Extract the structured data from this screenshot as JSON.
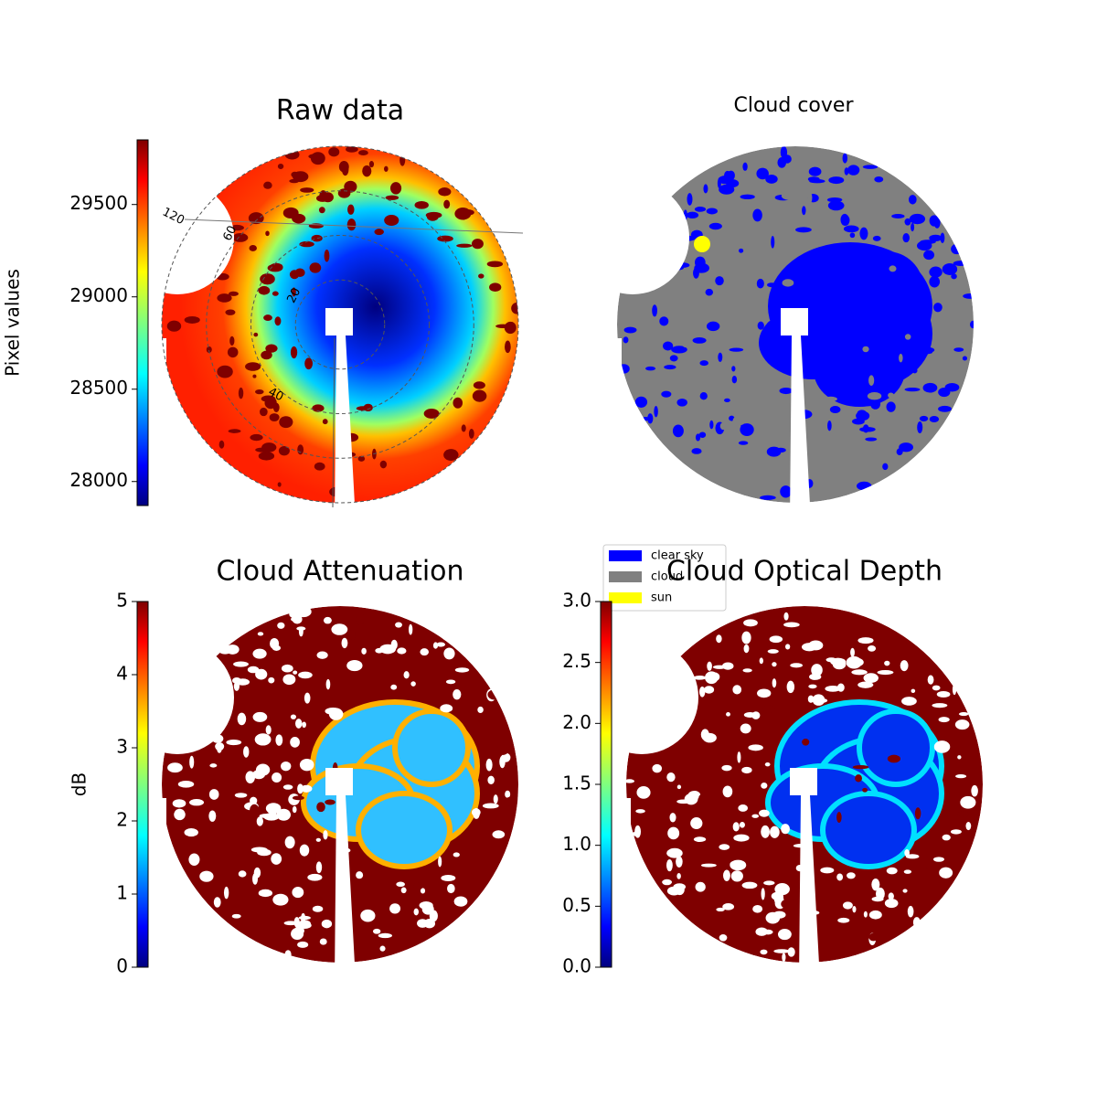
{
  "chart_data": [
    {
      "type": "image",
      "title": "Raw data",
      "colorbar_label": "Pixel values",
      "colormap": "jet",
      "ylim": [
        27870,
        29850
      ],
      "yticks": [
        28000,
        28500,
        29000,
        29500
      ],
      "annotations": [
        "120",
        "60",
        "20",
        "40"
      ]
    },
    {
      "type": "image",
      "title": "Cloud cover",
      "series": [
        {
          "name": "clear sky",
          "color": "#0000ff"
        },
        {
          "name": "cloud",
          "color": "#808080"
        },
        {
          "name": "sun",
          "color": "#ffff00"
        }
      ]
    },
    {
      "type": "image",
      "title": "Cloud Attenuation",
      "colorbar_label": "dB",
      "colormap": "jet",
      "ylim": [
        0,
        5
      ],
      "yticks": [
        0,
        1,
        2,
        3,
        4,
        5
      ]
    },
    {
      "type": "image",
      "title": "Cloud Optical Depth",
      "colormap": "jet",
      "ylim": [
        0,
        3
      ],
      "yticks": [
        {
          "value": 0,
          "label": "0.0"
        },
        {
          "value": 0.5,
          "label": "0.5"
        },
        {
          "value": 1,
          "label": "1.0"
        },
        {
          "value": 1.5,
          "label": "1.5"
        },
        {
          "value": 2,
          "label": "2.0"
        },
        {
          "value": 2.5,
          "label": "2.5"
        },
        {
          "value": 3,
          "label": "3.0"
        }
      ]
    }
  ]
}
